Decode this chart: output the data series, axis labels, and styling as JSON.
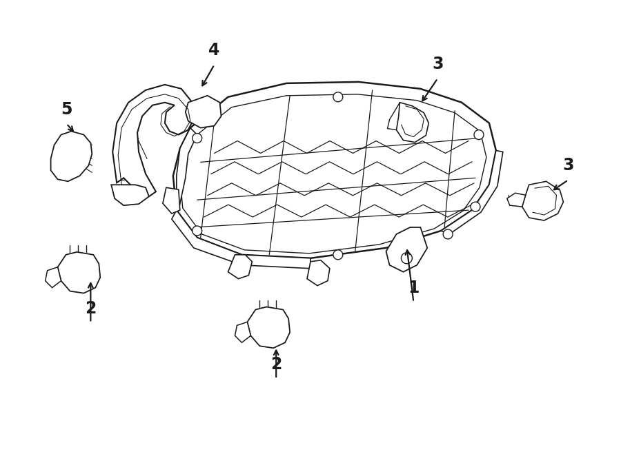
{
  "background_color": "#ffffff",
  "line_color": "#1a1a1a",
  "fig_width": 9.0,
  "fig_height": 6.62,
  "dpi": 100
}
